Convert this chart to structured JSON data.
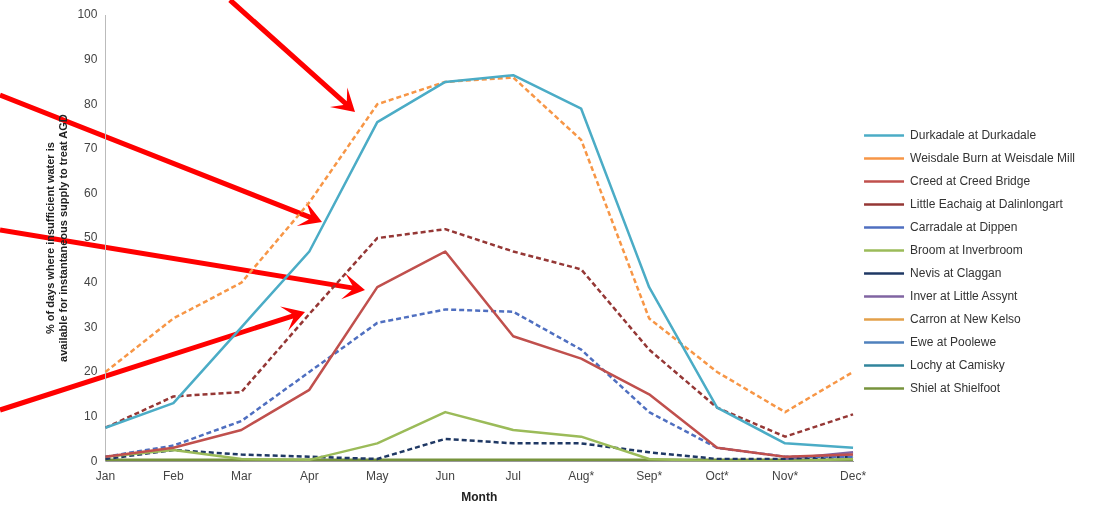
{
  "chart_data": {
    "type": "line",
    "xlabel": "Month",
    "ylabel": "% of days where insufficient water is available for instantaneous supply to treat AGD",
    "categories": [
      "Jan",
      "Feb",
      "Mar",
      "Apr",
      "May",
      "Jun",
      "Jul",
      "Aug*",
      "Sep*",
      "Oct*",
      "Nov*",
      "Dec*"
    ],
    "ylim": [
      0,
      100
    ],
    "yticks": [
      0,
      10,
      20,
      30,
      40,
      50,
      60,
      70,
      80,
      90,
      100
    ],
    "grid": false,
    "legend": "right",
    "marker": "none",
    "series": [
      {
        "name": "Durkadale at Durkadale",
        "color": "#4bacc6",
        "line_style": "solid",
        "values": [
          7.5,
          13,
          30,
          47,
          76,
          85,
          86.5,
          79,
          39,
          12,
          4,
          3
        ]
      },
      {
        "name": "Weisdale Burn at Weisdale Mill",
        "color": "#f79646",
        "line_style": "dashed",
        "values": [
          20,
          32,
          40,
          58,
          80,
          85,
          86,
          72,
          32,
          20,
          11,
          20
        ]
      },
      {
        "name": "Creed at Creed Bridge",
        "color": "#c0504d",
        "line_style": "solid",
        "values": [
          1,
          3,
          7,
          16,
          39,
          47,
          28,
          23,
          15,
          3,
          1,
          1.5
        ]
      },
      {
        "name": "Little Eachaig at Dalinlongart",
        "color": "#953735",
        "line_style": "dashed",
        "values": [
          7.5,
          14.5,
          15.5,
          33,
          50,
          52,
          47,
          43,
          25,
          12,
          5.5,
          10.5
        ]
      },
      {
        "name": "Carradale at Dippen",
        "color": "#4f6fc0",
        "line_style": "dashed",
        "values": [
          1,
          3.5,
          9,
          20,
          31,
          34,
          33.5,
          25,
          11,
          3,
          1,
          1
        ]
      },
      {
        "name": "Broom at Inverbroom",
        "color": "#9bbb59",
        "line_style": "solid",
        "values": [
          1,
          2.5,
          0.5,
          0.3,
          4,
          11,
          7,
          5.5,
          0.5,
          0,
          0,
          0.5
        ]
      },
      {
        "name": "Nevis at Claggan",
        "color": "#1f3864",
        "line_style": "dashed",
        "values": [
          0.5,
          2.5,
          1.5,
          1,
          0.5,
          5,
          4,
          4,
          2,
          0.5,
          0.5,
          1
        ]
      },
      {
        "name": "Inver at Little Assynt",
        "color": "#8064a2",
        "line_style": "solid",
        "values": [
          null,
          null,
          null,
          null,
          null,
          null,
          null,
          null,
          null,
          null,
          0.5,
          2
        ]
      },
      {
        "name": "Carron at New Kelso",
        "color": "#e3a04a",
        "line_style": "solid",
        "values": [
          null,
          null,
          null,
          null,
          null,
          null,
          null,
          null,
          null,
          null,
          null,
          null
        ]
      },
      {
        "name": "Ewe at Poolewe",
        "color": "#4f81bd",
        "line_style": "solid",
        "values": [
          null,
          null,
          null,
          null,
          null,
          null,
          null,
          null,
          null,
          null,
          null,
          null
        ]
      },
      {
        "name": "Lochy at Camisky",
        "color": "#31859c",
        "line_style": "solid",
        "values": [
          null,
          null,
          null,
          null,
          null,
          null,
          null,
          null,
          null,
          null,
          null,
          null
        ]
      },
      {
        "name": "Shiel at Shielfoot",
        "color": "#77933c",
        "line_style": "solid",
        "values": [
          0.3,
          0.3,
          0.3,
          0.3,
          0.3,
          0.3,
          0.3,
          0.3,
          0.3,
          0.3,
          0.3,
          0.3
        ]
      }
    ]
  }
}
